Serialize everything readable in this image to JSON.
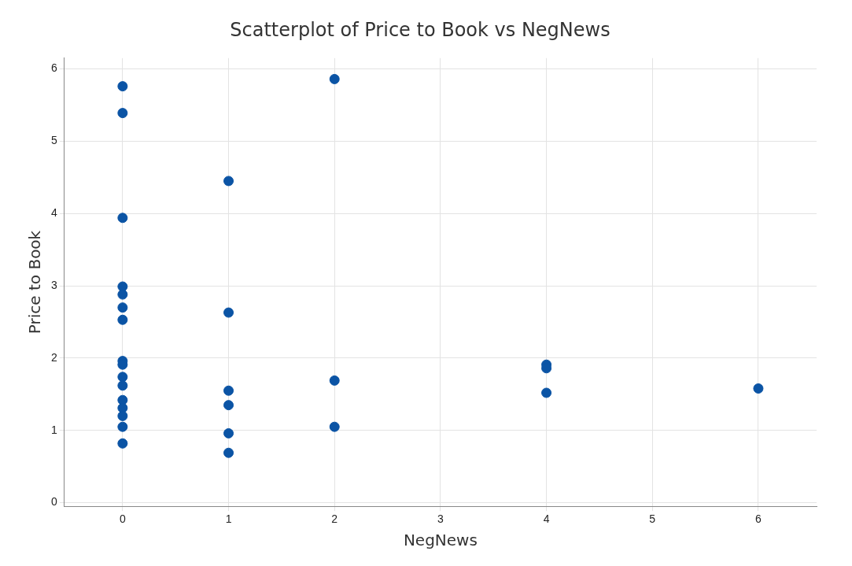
{
  "chart_data": {
    "type": "scatter",
    "title": "Scatterplot of Price to Book vs NegNews",
    "xlabel": "NegNews",
    "ylabel": "Price to Book",
    "series": [
      {
        "color": "#0b54a5",
        "x": [
          0,
          0,
          0,
          0,
          0,
          0,
          0,
          0,
          0,
          0,
          0,
          0,
          0,
          0,
          0,
          0,
          1,
          1,
          1,
          1,
          1,
          1,
          2,
          2,
          2,
          4,
          4,
          4,
          6
        ],
        "values": [
          5.76,
          5.39,
          3.94,
          2.99,
          2.88,
          2.7,
          2.53,
          1.96,
          1.91,
          1.74,
          1.62,
          1.42,
          1.31,
          1.2,
          1.05,
          0.82,
          4.45,
          2.63,
          1.55,
          1.35,
          0.96,
          0.69,
          5.86,
          1.69,
          1.05,
          1.91,
          1.86,
          1.52,
          1.58
        ]
      }
    ],
    "xlim": [
      -0.55,
      6.55
    ],
    "xticks": [
      0,
      1,
      2,
      3,
      4,
      5,
      6
    ],
    "ylim": [
      -0.05,
      6.15
    ],
    "yticks": [
      0,
      1,
      2,
      3,
      4,
      5,
      6
    ],
    "grid": true,
    "legend": false,
    "marker": "circle"
  }
}
